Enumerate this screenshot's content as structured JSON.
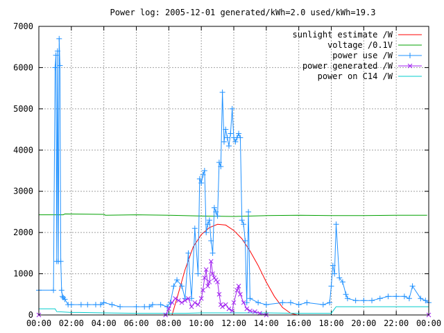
{
  "chart_data": {
    "type": "line",
    "title": "Power log: 2005-12-01 generated/kWh=2.0 used/kWh=19.3",
    "xlabel": "",
    "ylabel": "",
    "xlim_hours": [
      0,
      24
    ],
    "ylim": [
      0,
      7000
    ],
    "x_tick_labels": [
      "00:00",
      "02:00",
      "04:00",
      "06:00",
      "08:00",
      "10:00",
      "12:00",
      "14:00",
      "16:00",
      "18:00",
      "20:00",
      "22:00",
      "00:00"
    ],
    "y_ticks": [
      0,
      1000,
      2000,
      3000,
      4000,
      5000,
      6000,
      7000
    ],
    "grid": true,
    "legend_position": "top-right",
    "series": [
      {
        "name": "sunlight estimate /W",
        "color": "#ff0000",
        "marker": "none",
        "x": [
          8.2,
          8.5,
          9.0,
          9.5,
          10.0,
          10.5,
          11.0,
          11.5,
          12.0,
          12.5,
          13.0,
          13.5,
          14.0,
          14.5,
          15.0,
          15.5,
          15.9
        ],
        "y": [
          0,
          400,
          1100,
          1650,
          1950,
          2120,
          2200,
          2180,
          2050,
          1850,
          1550,
          1200,
          800,
          450,
          180,
          40,
          0
        ]
      },
      {
        "name": "voltage /0.1V",
        "color": "#00a000",
        "marker": "none",
        "x": [
          0,
          1.5,
          1.6,
          4.0,
          4.1,
          6.0,
          8.0,
          10.0,
          12.0,
          14.0,
          16.0,
          18.0,
          20.0,
          22.0,
          23.9
        ],
        "y": [
          2430,
          2430,
          2450,
          2440,
          2420,
          2430,
          2420,
          2400,
          2390,
          2410,
          2420,
          2410,
          2410,
          2420,
          2420
        ]
      },
      {
        "name": "power use /W",
        "color": "#1e90ff",
        "marker": "+",
        "x": [
          0,
          0.9,
          1.0,
          1.05,
          1.1,
          1.15,
          1.2,
          1.25,
          1.3,
          1.35,
          1.4,
          1.45,
          1.5,
          1.6,
          1.8,
          2.0,
          2.6,
          3.0,
          3.5,
          3.8,
          4.0,
          4.5,
          5.0,
          6.0,
          6.5,
          6.8,
          7.0,
          7.5,
          7.9,
          8.1,
          8.3,
          8.5,
          8.8,
          9.0,
          9.2,
          9.4,
          9.6,
          9.8,
          9.9,
          10.0,
          10.1,
          10.2,
          10.3,
          10.4,
          10.5,
          10.6,
          10.7,
          10.8,
          10.9,
          11.0,
          11.1,
          11.2,
          11.3,
          11.4,
          11.5,
          11.6,
          11.7,
          11.8,
          11.9,
          12.0,
          12.1,
          12.2,
          12.3,
          12.4,
          12.5,
          12.6,
          12.7,
          12.8,
          12.9,
          13.0,
          13.5,
          14.0,
          15.0,
          15.5,
          16.0,
          16.5,
          17.5,
          17.9,
          18.0,
          18.1,
          18.2,
          18.3,
          18.5,
          18.7,
          18.9,
          19.0,
          19.5,
          20.0,
          20.5,
          21.0,
          21.5,
          22.0,
          22.5,
          22.8,
          23.0,
          23.5,
          23.8,
          24.0
        ],
        "y": [
          600,
          600,
          6000,
          6300,
          1300,
          6400,
          1300,
          6700,
          6050,
          1300,
          600,
          450,
          420,
          380,
          250,
          250,
          250,
          250,
          250,
          250,
          300,
          250,
          200,
          200,
          200,
          200,
          250,
          250,
          200,
          300,
          700,
          850,
          700,
          400,
          1500,
          400,
          2100,
          1000,
          3300,
          3200,
          3400,
          3500,
          2000,
          2200,
          2300,
          1800,
          1500,
          2600,
          2500,
          2400,
          3700,
          3600,
          5400,
          4200,
          4500,
          4300,
          4100,
          4400,
          5000,
          4300,
          4200,
          4300,
          4400,
          4300,
          2300,
          2200,
          1800,
          300,
          2500,
          400,
          300,
          250,
          300,
          300,
          250,
          300,
          250,
          300,
          700,
          1200,
          1000,
          2200,
          900,
          800,
          500,
          400,
          350,
          350,
          350,
          400,
          450,
          450,
          450,
          400,
          700,
          400,
          350,
          300
        ]
      },
      {
        "name": "power generated /W",
        "color": "#a020f0",
        "marker": "x",
        "x": [
          0,
          7.8,
          8.0,
          8.2,
          8.4,
          8.6,
          8.8,
          9.0,
          9.2,
          9.4,
          9.6,
          9.8,
          10.0,
          10.1,
          10.2,
          10.3,
          10.4,
          10.5,
          10.6,
          10.7,
          10.8,
          10.9,
          11.0,
          11.1,
          11.2,
          11.3,
          11.5,
          11.7,
          11.9,
          12.0,
          12.2,
          12.3,
          12.4,
          12.6,
          12.8,
          13.0,
          13.3,
          13.6,
          14.0,
          24.0
        ],
        "y": [
          0,
          0,
          150,
          300,
          400,
          350,
          300,
          350,
          400,
          200,
          300,
          250,
          400,
          600,
          900,
          1100,
          700,
          800,
          1300,
          1000,
          900,
          850,
          800,
          500,
          250,
          200,
          250,
          150,
          100,
          300,
          600,
          700,
          500,
          300,
          150,
          100,
          80,
          40,
          0,
          0
        ]
      },
      {
        "name": "power on C14 /W",
        "color": "#00cccc",
        "marker": "none",
        "x": [
          0,
          1.0,
          1.1,
          2.0,
          2.5,
          4.0,
          6.0,
          7.0,
          8.0,
          9.0,
          10.0,
          12.0,
          13.0,
          14.0,
          16.0,
          18.0,
          18.3,
          19.0,
          20.0,
          22.0,
          23.0,
          24.0
        ],
        "y": [
          150,
          150,
          80,
          60,
          60,
          50,
          40,
          40,
          40,
          40,
          50,
          50,
          50,
          50,
          40,
          40,
          200,
          200,
          200,
          200,
          200,
          200
        ]
      }
    ]
  }
}
